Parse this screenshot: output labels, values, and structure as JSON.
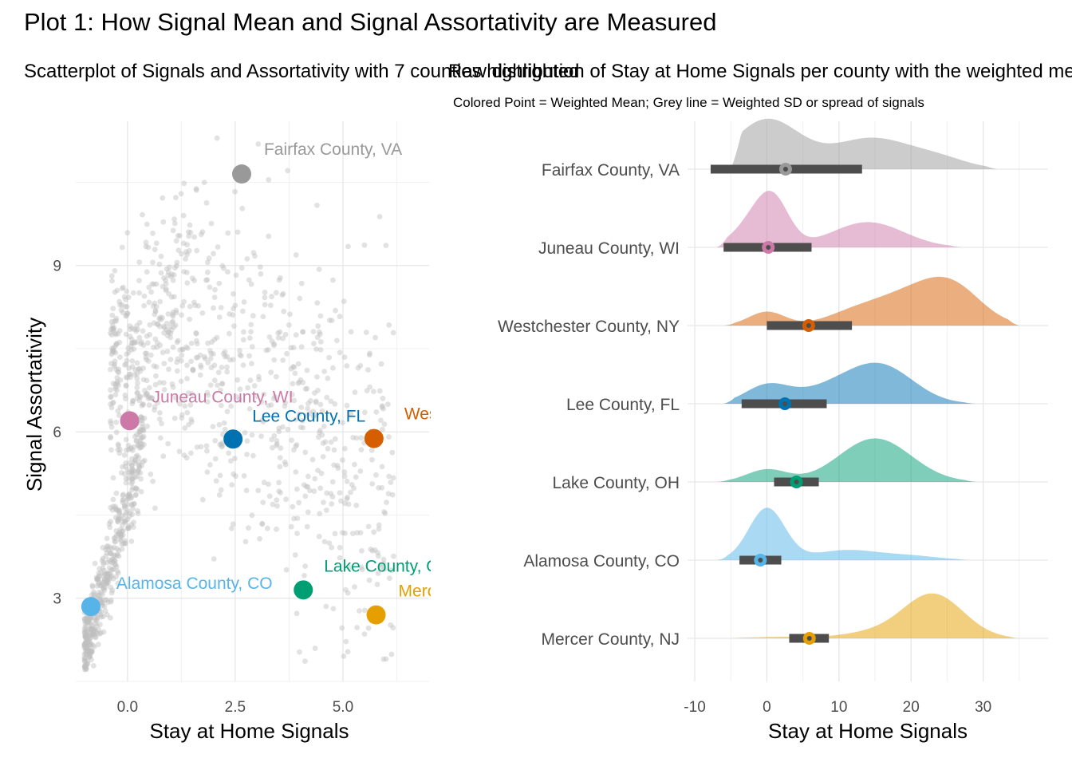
{
  "title": "Plot 1: How Signal Mean and Signal Assortativity are Measured",
  "chart_data": [
    {
      "type": "scatter",
      "subtitle": "Scatterplot of Signals and Assortativity with 7 counties highlighted",
      "xlabel": "Stay at Home Signals",
      "ylabel": "Signal Assortativity",
      "xlim": [
        -1.2,
        7.0
      ],
      "ylim": [
        1.5,
        11.6
      ],
      "x_ticks": [
        0.0,
        2.5,
        5.0
      ],
      "x_tick_labels": [
        "0.0",
        "2.5",
        "5.0"
      ],
      "y_ticks": [
        3,
        6,
        9
      ],
      "y_tick_labels": [
        "3",
        "6",
        "9"
      ],
      "grid": true,
      "background_points": {
        "color": "#BEBEBE",
        "count": 1400,
        "description": "grey point cloud, all counties"
      },
      "highlighted": [
        {
          "label": "Fairfax County, VA",
          "x": 2.65,
          "y": 10.65,
          "color": "#999999"
        },
        {
          "label": "Juneau County, WI",
          "x": 0.05,
          "y": 6.2,
          "color": "#CC79A7"
        },
        {
          "label": "Westchester County, NY",
          "x": 5.72,
          "y": 5.88,
          "color": "#D55E00"
        },
        {
          "label": "Lee County, FL",
          "x": 2.45,
          "y": 5.87,
          "color": "#0072B2"
        },
        {
          "label": "Lake County, OH",
          "x": 4.08,
          "y": 3.15,
          "color": "#009E73"
        },
        {
          "label": "Alamosa County, CO",
          "x": -0.85,
          "y": 2.85,
          "color": "#56B4E9"
        },
        {
          "label": "Mercer County, NJ",
          "x": 5.77,
          "y": 2.7,
          "color": "#E69F00"
        }
      ]
    },
    {
      "type": "ridgeline",
      "title": "Raw distribution of Stay at Home Signals per county with the weighted mean and SD",
      "subtitle": "Colored Point = Weighted Mean; Grey line = Weighted SD or spread of signals",
      "xlabel": "Stay at Home Signals",
      "xlim": [
        -11,
        39
      ],
      "x_ticks": [
        -10,
        0,
        10,
        20,
        30
      ],
      "x_tick_labels": [
        "-10",
        "0",
        "10",
        "20",
        "30"
      ],
      "grid": true,
      "series": [
        {
          "name": "Fairfax County, VA",
          "color": "#999999",
          "mean": 2.6,
          "sd_low": -7.8,
          "sd_high": 13.2,
          "range": [
            -5,
            32
          ],
          "peaks": [
            [
              0,
              4.6,
              1.0
            ],
            [
              14.5,
              5.5,
              0.62
            ],
            [
              24,
              4,
              0.18
            ]
          ]
        },
        {
          "name": "Juneau County, WI",
          "color": "#CC79A7",
          "mean": 0.2,
          "sd_low": -6.0,
          "sd_high": 6.2,
          "range": [
            -7,
            27
          ],
          "peaks": [
            [
              -1.5,
              2.8,
              0.55
            ],
            [
              1,
              2.2,
              0.72
            ],
            [
              14,
              5,
              0.51
            ]
          ]
        },
        {
          "name": "Westchester County, NY",
          "color": "#D55E00",
          "mean": 5.8,
          "sd_low": 0.0,
          "sd_high": 11.8,
          "range": [
            -6,
            35
          ],
          "peaks": [
            [
              0,
              2.5,
              0.28
            ],
            [
              12,
              4,
              0.22
            ],
            [
              20,
              5,
              0.6
            ],
            [
              26,
              4,
              0.62
            ]
          ]
        },
        {
          "name": "Lee County, FL",
          "color": "#0072B2",
          "mean": 2.5,
          "sd_low": -3.5,
          "sd_high": 8.3,
          "range": [
            -6,
            29
          ],
          "peaks": [
            [
              0,
              3,
              0.35
            ],
            [
              9,
              5,
              0.3
            ],
            [
              16,
              4.5,
              0.7
            ]
          ]
        },
        {
          "name": "Lake County, OH",
          "color": "#009E73",
          "mean": 4.1,
          "sd_low": 1.0,
          "sd_high": 7.2,
          "range": [
            -7,
            29
          ],
          "peaks": [
            [
              0,
              2.8,
              0.25
            ],
            [
              15,
              5,
              0.88
            ]
          ]
        },
        {
          "name": "Alamosa County, CO",
          "color": "#56B4E9",
          "mean": -0.9,
          "sd_low": -3.8,
          "sd_high": 2.0,
          "range": [
            -7,
            28
          ],
          "peaks": [
            [
              0,
              2.5,
              1.05
            ],
            [
              11,
              4.5,
              0.2
            ],
            [
              20,
              4,
              0.08
            ]
          ]
        },
        {
          "name": "Mercer County, NJ",
          "color": "#E69F00",
          "mean": 5.9,
          "sd_low": 3.1,
          "sd_high": 8.6,
          "range": [
            -5,
            35
          ],
          "peaks": [
            [
              2,
              4,
              0.03
            ],
            [
              14,
              4,
              0.1
            ],
            [
              23,
              4.2,
              0.9
            ]
          ]
        }
      ]
    }
  ]
}
